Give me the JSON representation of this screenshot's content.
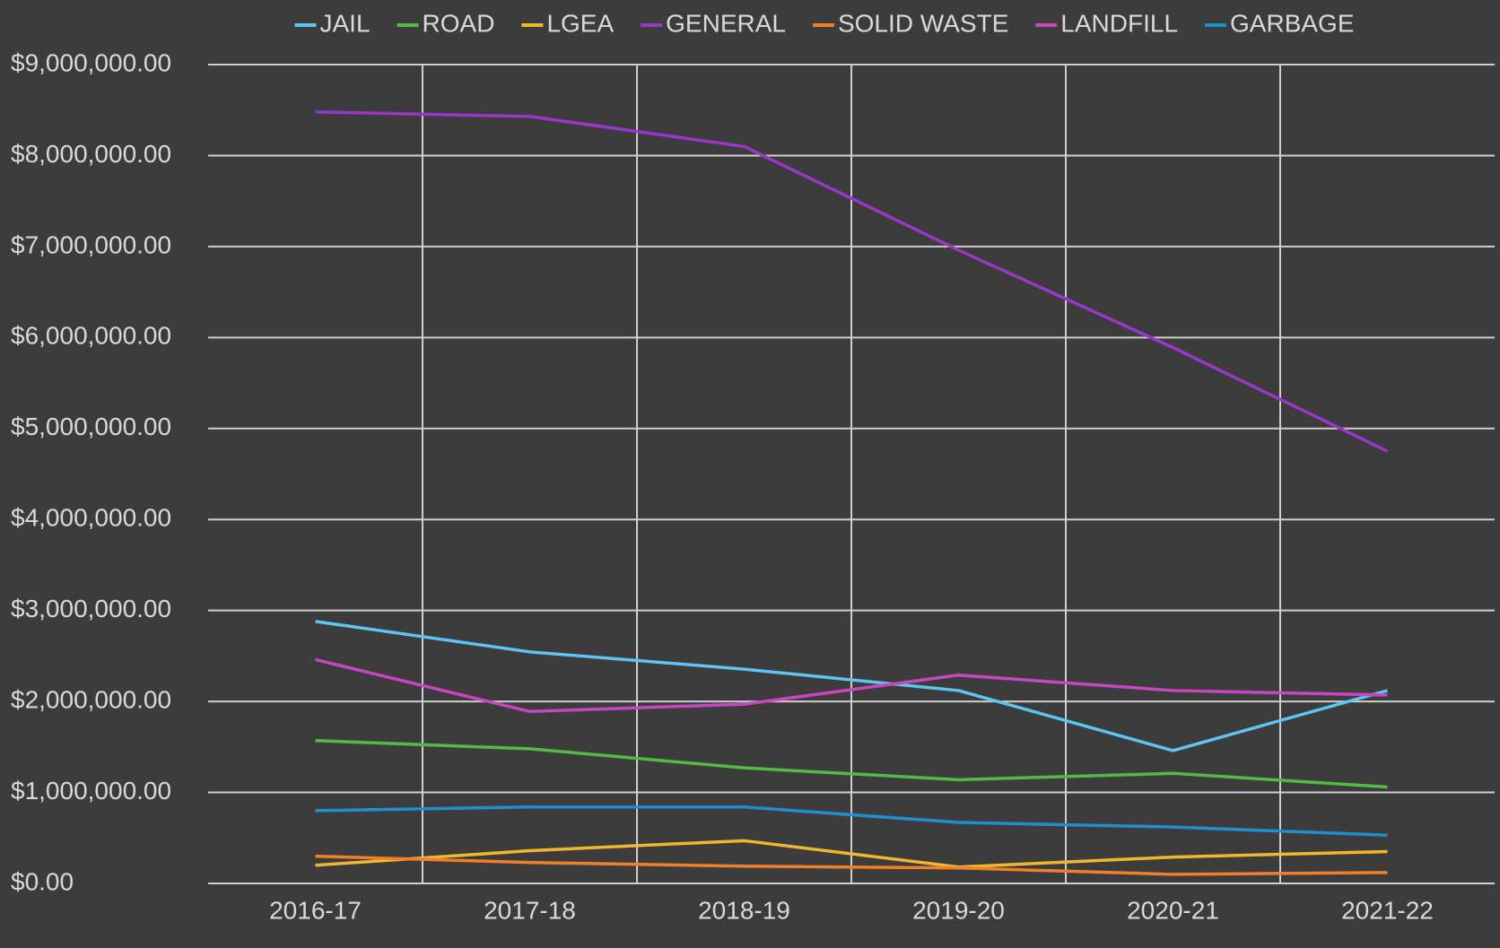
{
  "chart_data": {
    "type": "line",
    "categories": [
      "2016-17",
      "2017-18",
      "2018-19",
      "2019-20",
      "2020-21",
      "2021-22"
    ],
    "series": [
      {
        "name": "JAIL",
        "color": "#5ec4f0",
        "values": [
          2880000,
          2545000,
          2355000,
          2120000,
          1460000,
          2120000
        ]
      },
      {
        "name": "ROAD",
        "color": "#55b948",
        "values": [
          1570000,
          1480000,
          1270000,
          1140000,
          1210000,
          1060000
        ]
      },
      {
        "name": "LGEA",
        "color": "#f0b82e",
        "values": [
          200000,
          360000,
          470000,
          180000,
          290000,
          350000
        ]
      },
      {
        "name": "GENERAL",
        "color": "#9a36c8",
        "values": [
          8480000,
          8430000,
          8100000,
          6960000,
          5890000,
          4750000
        ]
      },
      {
        "name": "SOLID WASTE",
        "color": "#f07f2a",
        "values": [
          300000,
          230000,
          190000,
          170000,
          100000,
          120000
        ]
      },
      {
        "name": "LANDFILL",
        "color": "#c846c0",
        "values": [
          2460000,
          1890000,
          1970000,
          2290000,
          2120000,
          2070000
        ]
      },
      {
        "name": "GARBAGE",
        "color": "#208fd0",
        "values": [
          800000,
          840000,
          840000,
          670000,
          620000,
          530000
        ]
      }
    ],
    "ylim": [
      0,
      9000000
    ],
    "yticks": [
      {
        "value": 0,
        "label": "$0.00"
      },
      {
        "value": 1000000,
        "label": "$1,000,000.00"
      },
      {
        "value": 2000000,
        "label": "$2,000,000.00"
      },
      {
        "value": 3000000,
        "label": "$3,000,000.00"
      },
      {
        "value": 4000000,
        "label": "$4,000,000.00"
      },
      {
        "value": 5000000,
        "label": "$5,000,000.00"
      },
      {
        "value": 6000000,
        "label": "$6,000,000.00"
      },
      {
        "value": 7000000,
        "label": "$7,000,000.00"
      },
      {
        "value": 8000000,
        "label": "$8,000,000.00"
      },
      {
        "value": 9000000,
        "label": "$9,000,000.00"
      }
    ],
    "grid": true,
    "legend": "top"
  }
}
